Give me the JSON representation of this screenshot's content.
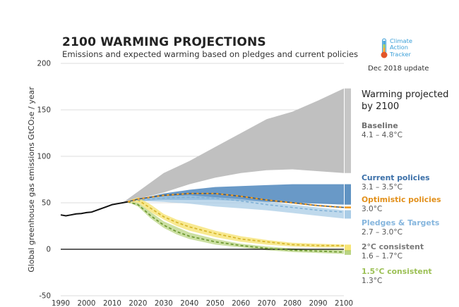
{
  "title": "2100 WARMING PROJECTIONS",
  "subtitle": "Emissions and expected warming based on pledges and current policies",
  "logo": {
    "text": "Climate\nAction\nTracker"
  },
  "update_note": "Dec 2018 update",
  "colors": {
    "historical": "#111111",
    "baseline": "#bdbdbd",
    "current_policies": "#4f87bd",
    "optimistic_policies": "#ee9b22",
    "pledges_targets": "#a9cce6",
    "deg2": "#f6e476",
    "deg15": "#a8c964",
    "zero_line": "#000000",
    "label_gray": "#777777",
    "label_dark": "#333333",
    "grid": "#d0d0d0"
  },
  "chart_data": {
    "type": "area",
    "ylabel": "Global greenhouse gas emissions  GtCO₂e / year",
    "xlim": [
      1990,
      2100
    ],
    "ylim": [
      -50,
      200
    ],
    "x_ticks": [
      1990,
      2000,
      2010,
      2020,
      2030,
      2040,
      2050,
      2060,
      2070,
      2080,
      2090,
      2100
    ],
    "y_ticks": [
      -50,
      0,
      50,
      100,
      150,
      200
    ],
    "grid": true,
    "legend_heading": "Warming projected\nby 2100",
    "historical": {
      "x": [
        1990,
        1992,
        1994,
        1996,
        1998,
        2000,
        2002,
        2004,
        2006,
        2008,
        2010,
        2012,
        2014,
        2016
      ],
      "y": [
        37,
        36,
        37,
        38,
        38.5,
        39.5,
        40,
        42,
        44,
        46,
        48,
        49,
        50,
        51
      ]
    },
    "series": [
      {
        "name": "Baseline",
        "range": "4.1 – 4.8°C",
        "x": [
          2014,
          2030,
          2040,
          2050,
          2060,
          2070,
          2080,
          2090,
          2100
        ],
        "upper": [
          50,
          82,
          95,
          110,
          125,
          140,
          148,
          160,
          173
        ],
        "lower": [
          50,
          61,
          70,
          77,
          82,
          85,
          86,
          84,
          82
        ]
      },
      {
        "name": "Current policies",
        "range": "3.1 – 3.5°C",
        "x": [
          2016,
          2020,
          2030,
          2040,
          2050,
          2060,
          2070,
          2080,
          2090,
          2100
        ],
        "upper": [
          51,
          54,
          60,
          64,
          67,
          68,
          69,
          70,
          70,
          70
        ],
        "lower": [
          51,
          52,
          53,
          53,
          53,
          52,
          51,
          50,
          49,
          48
        ]
      },
      {
        "name": "Optimistic policies",
        "range": "3.0°C",
        "x": [
          2016,
          2020,
          2030,
          2040,
          2050,
          2060,
          2070,
          2080,
          2090,
          2100
        ],
        "y": [
          51,
          54,
          58,
          60,
          60,
          57,
          53,
          50,
          47,
          45
        ]
      },
      {
        "name": "Pledges & Targets",
        "range": "2.7 – 3.0°C",
        "x": [
          2016,
          2020,
          2030,
          2040,
          2050,
          2060,
          2070,
          2080,
          2090,
          2100
        ],
        "upper": [
          51,
          54,
          57,
          58,
          56,
          54,
          51,
          48,
          45,
          42
        ],
        "lower": [
          51,
          52,
          51,
          49,
          46,
          44,
          42,
          39,
          36,
          33
        ],
        "mid": [
          51,
          53,
          55,
          56,
          55,
          52,
          48,
          45,
          42,
          40
        ]
      },
      {
        "name": "2°C consistent",
        "range": "1.6 – 1.7°C",
        "x": [
          2016,
          2020,
          2025,
          2030,
          2035,
          2040,
          2050,
          2060,
          2070,
          2080,
          2090,
          2100
        ],
        "upper": [
          52,
          56,
          48,
          38,
          32,
          28,
          20,
          14,
          10,
          7,
          6,
          5
        ],
        "lower": [
          51,
          50,
          40,
          32,
          25,
          20,
          13,
          8,
          5,
          3,
          2,
          2
        ],
        "mid": [
          51,
          53,
          44,
          35,
          29,
          24,
          17,
          11,
          8,
          5,
          4,
          4
        ]
      },
      {
        "name": "1.5°C consistent",
        "range": "1.3°C",
        "x": [
          2016,
          2020,
          2025,
          2030,
          2035,
          2040,
          2050,
          2060,
          2070,
          2080,
          2090,
          2100
        ],
        "upper": [
          51,
          50,
          40,
          30,
          24,
          18,
          11,
          6,
          3,
          1,
          0,
          -1
        ],
        "lower": [
          51,
          46,
          33,
          23,
          16,
          11,
          5,
          2,
          -1,
          -3,
          -4,
          -5
        ],
        "mid": [
          51,
          48,
          36,
          26,
          19,
          14,
          8,
          4,
          1,
          -1,
          -2,
          -3
        ]
      }
    ]
  }
}
